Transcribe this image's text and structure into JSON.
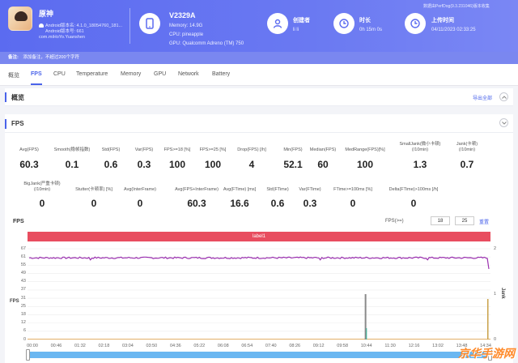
{
  "app": {
    "name": "原神",
    "version_line": "Android版本名: 4.1.0_18054760_181...",
    "build_line": "Android版本号: 661",
    "package": "com.miHoYo.Yuanshen"
  },
  "device": {
    "name": "V2329A",
    "memory": "Memory: 14.9G",
    "cpu": "CPU: pineapple",
    "gpu": "GPU: Qualcomm Adreno (TM) 750"
  },
  "creator": {
    "label": "创建者",
    "value": "li li"
  },
  "duration": {
    "label": "时长",
    "value": "0h 15m 0s"
  },
  "upload": {
    "label": "上传时间",
    "value": "04/11/2023 02:33:25"
  },
  "collect_note": "数据由PerfDog(9.3.231046)版本收集",
  "note": {
    "label": "备注:",
    "placeholder": "添加备注，不超过200个字符"
  },
  "tabs": [
    "概览",
    "FPS",
    "CPU",
    "Temperature",
    "Memory",
    "GPU",
    "Network",
    "Battery"
  ],
  "active_tab": "FPS",
  "overview": {
    "title": "概览",
    "export": "导出全部"
  },
  "fps_section": {
    "title": "FPS"
  },
  "stats_row1": [
    {
      "label": "Avg(FPS)",
      "value": "60.3"
    },
    {
      "label": "Smooth(稳帧指数)",
      "value": "0.1"
    },
    {
      "label": "Std(FPS)",
      "value": "0.6"
    },
    {
      "label": "Var(FPS)",
      "value": "0.3"
    },
    {
      "label": "FPS>=18 [%]",
      "value": "100"
    },
    {
      "label": "FPS>=25 [%]",
      "value": "100"
    },
    {
      "label": "Drop(FPS) [/h]",
      "value": "4"
    },
    {
      "label": "Min(FPS)",
      "value": "52.1"
    },
    {
      "label": "Median(FPS)",
      "value": "60"
    },
    {
      "label": "MedRange(FPS)[%]",
      "value": "100"
    },
    {
      "label": "SmallJank(微小卡顿)\n(/10min)",
      "value": "1.3"
    },
    {
      "label": "Jank(卡顿)\n(/10min)",
      "value": "0.7"
    }
  ],
  "stats_row2": [
    {
      "label": "BigJank(严重卡顿)\n(/10min)",
      "value": "0"
    },
    {
      "label": "Stutter(卡顿率) [%]",
      "value": "0"
    },
    {
      "label": "Avg(InterFrame)",
      "value": "0"
    },
    {
      "label": "Avg(FPS+InterFrame)",
      "value": "60.3"
    },
    {
      "label": "Avg(FTime) [ms]",
      "value": "16.6"
    },
    {
      "label": "Std(FTime)",
      "value": "0.6"
    },
    {
      "label": "Var(FTime)",
      "value": "0.3"
    },
    {
      "label": "FTime>=100ms [%]",
      "value": "0"
    },
    {
      "label": "Delta(FTime)>100ms [/h]",
      "value": "0"
    }
  ],
  "chart_controls": {
    "title": "FPS",
    "threshold_label": "FPS(>=)",
    "threshold_1": "18",
    "threshold_2": "25",
    "reset": "重置"
  },
  "chart_data": {
    "type": "line",
    "band_label": "label1",
    "ylabel": "FPS",
    "y2label": "Jank",
    "y_ticks": [
      "67",
      "61",
      "55",
      "49",
      "43",
      "37",
      "31",
      "25",
      "18",
      "12",
      "6",
      "0"
    ],
    "y2_ticks": [
      "2",
      "1",
      "0"
    ],
    "x_ticks": [
      "00:00",
      "00:46",
      "01:32",
      "02:18",
      "03:04",
      "03:50",
      "04:36",
      "05:22",
      "06:08",
      "06:54",
      "07:40",
      "08:26",
      "09:12",
      "09:58",
      "10:44",
      "11:30",
      "12:16",
      "13:02",
      "13:48",
      "14:34"
    ],
    "series": [
      {
        "name": "FPS",
        "color": "#9b30b0",
        "approx_value": 60.3,
        "min": 52.1
      },
      {
        "name": "Jank",
        "color": "#8a8a8a"
      }
    ],
    "jank_spikes": [
      {
        "x": "10:44",
        "value": 1
      }
    ],
    "y_range": [
      0,
      67
    ],
    "y2_range": [
      0,
      2
    ]
  },
  "watermark": "京华手游网"
}
